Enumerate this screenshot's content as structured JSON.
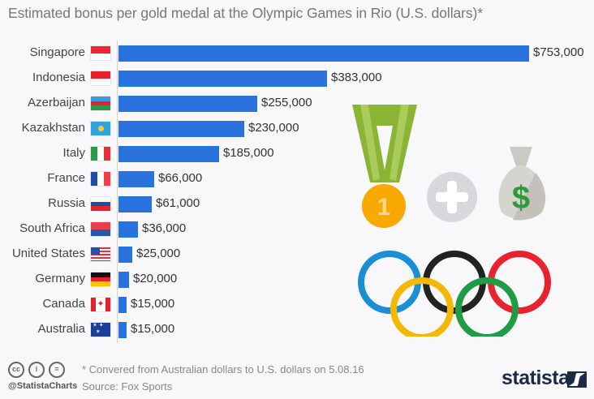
{
  "title": "Estimated bonus per gold medal at the Olympic Games in Rio (U.S. dollars)*",
  "chart_data": {
    "type": "bar",
    "orientation": "horizontal",
    "title": "Estimated bonus per gold medal at the Olympic Games in Rio (U.S. dollars)*",
    "xlabel": "",
    "ylabel": "",
    "categories": [
      "Singapore",
      "Indonesia",
      "Azerbaijan",
      "Kazakhstan",
      "Italy",
      "France",
      "Russia",
      "South Africa",
      "United States",
      "Germany",
      "Canada",
      "Australia"
    ],
    "values": [
      753000,
      383000,
      255000,
      230000,
      185000,
      66000,
      61000,
      36000,
      25000,
      20000,
      15000,
      15000
    ],
    "value_labels": [
      "$753,000",
      "$383,000",
      "$255,000",
      "$230,000",
      "$185,000",
      "$66,000",
      "$61,000",
      "$36,000",
      "$25,000",
      "$20,000",
      "$15,000",
      "$15,000"
    ],
    "grid": false,
    "legend": null,
    "bar_color": "#2a72de"
  },
  "footnote": "* Convered from Australian dollars to U.S. dollars on 5.08.16",
  "source": "Source: Fox Sports",
  "handle": "@StatistaCharts",
  "license_icons": [
    "cc",
    "by",
    "="
  ],
  "brand": "statista",
  "illustration": {
    "medal_number": "1",
    "icons": [
      "gold-medal-icon",
      "plus-icon",
      "money-bag-icon",
      "olympic-rings-icon"
    ],
    "ring_colors": [
      "#1a8fd6",
      "#222222",
      "#e8232b",
      "#f5b800",
      "#1e9d46"
    ]
  }
}
